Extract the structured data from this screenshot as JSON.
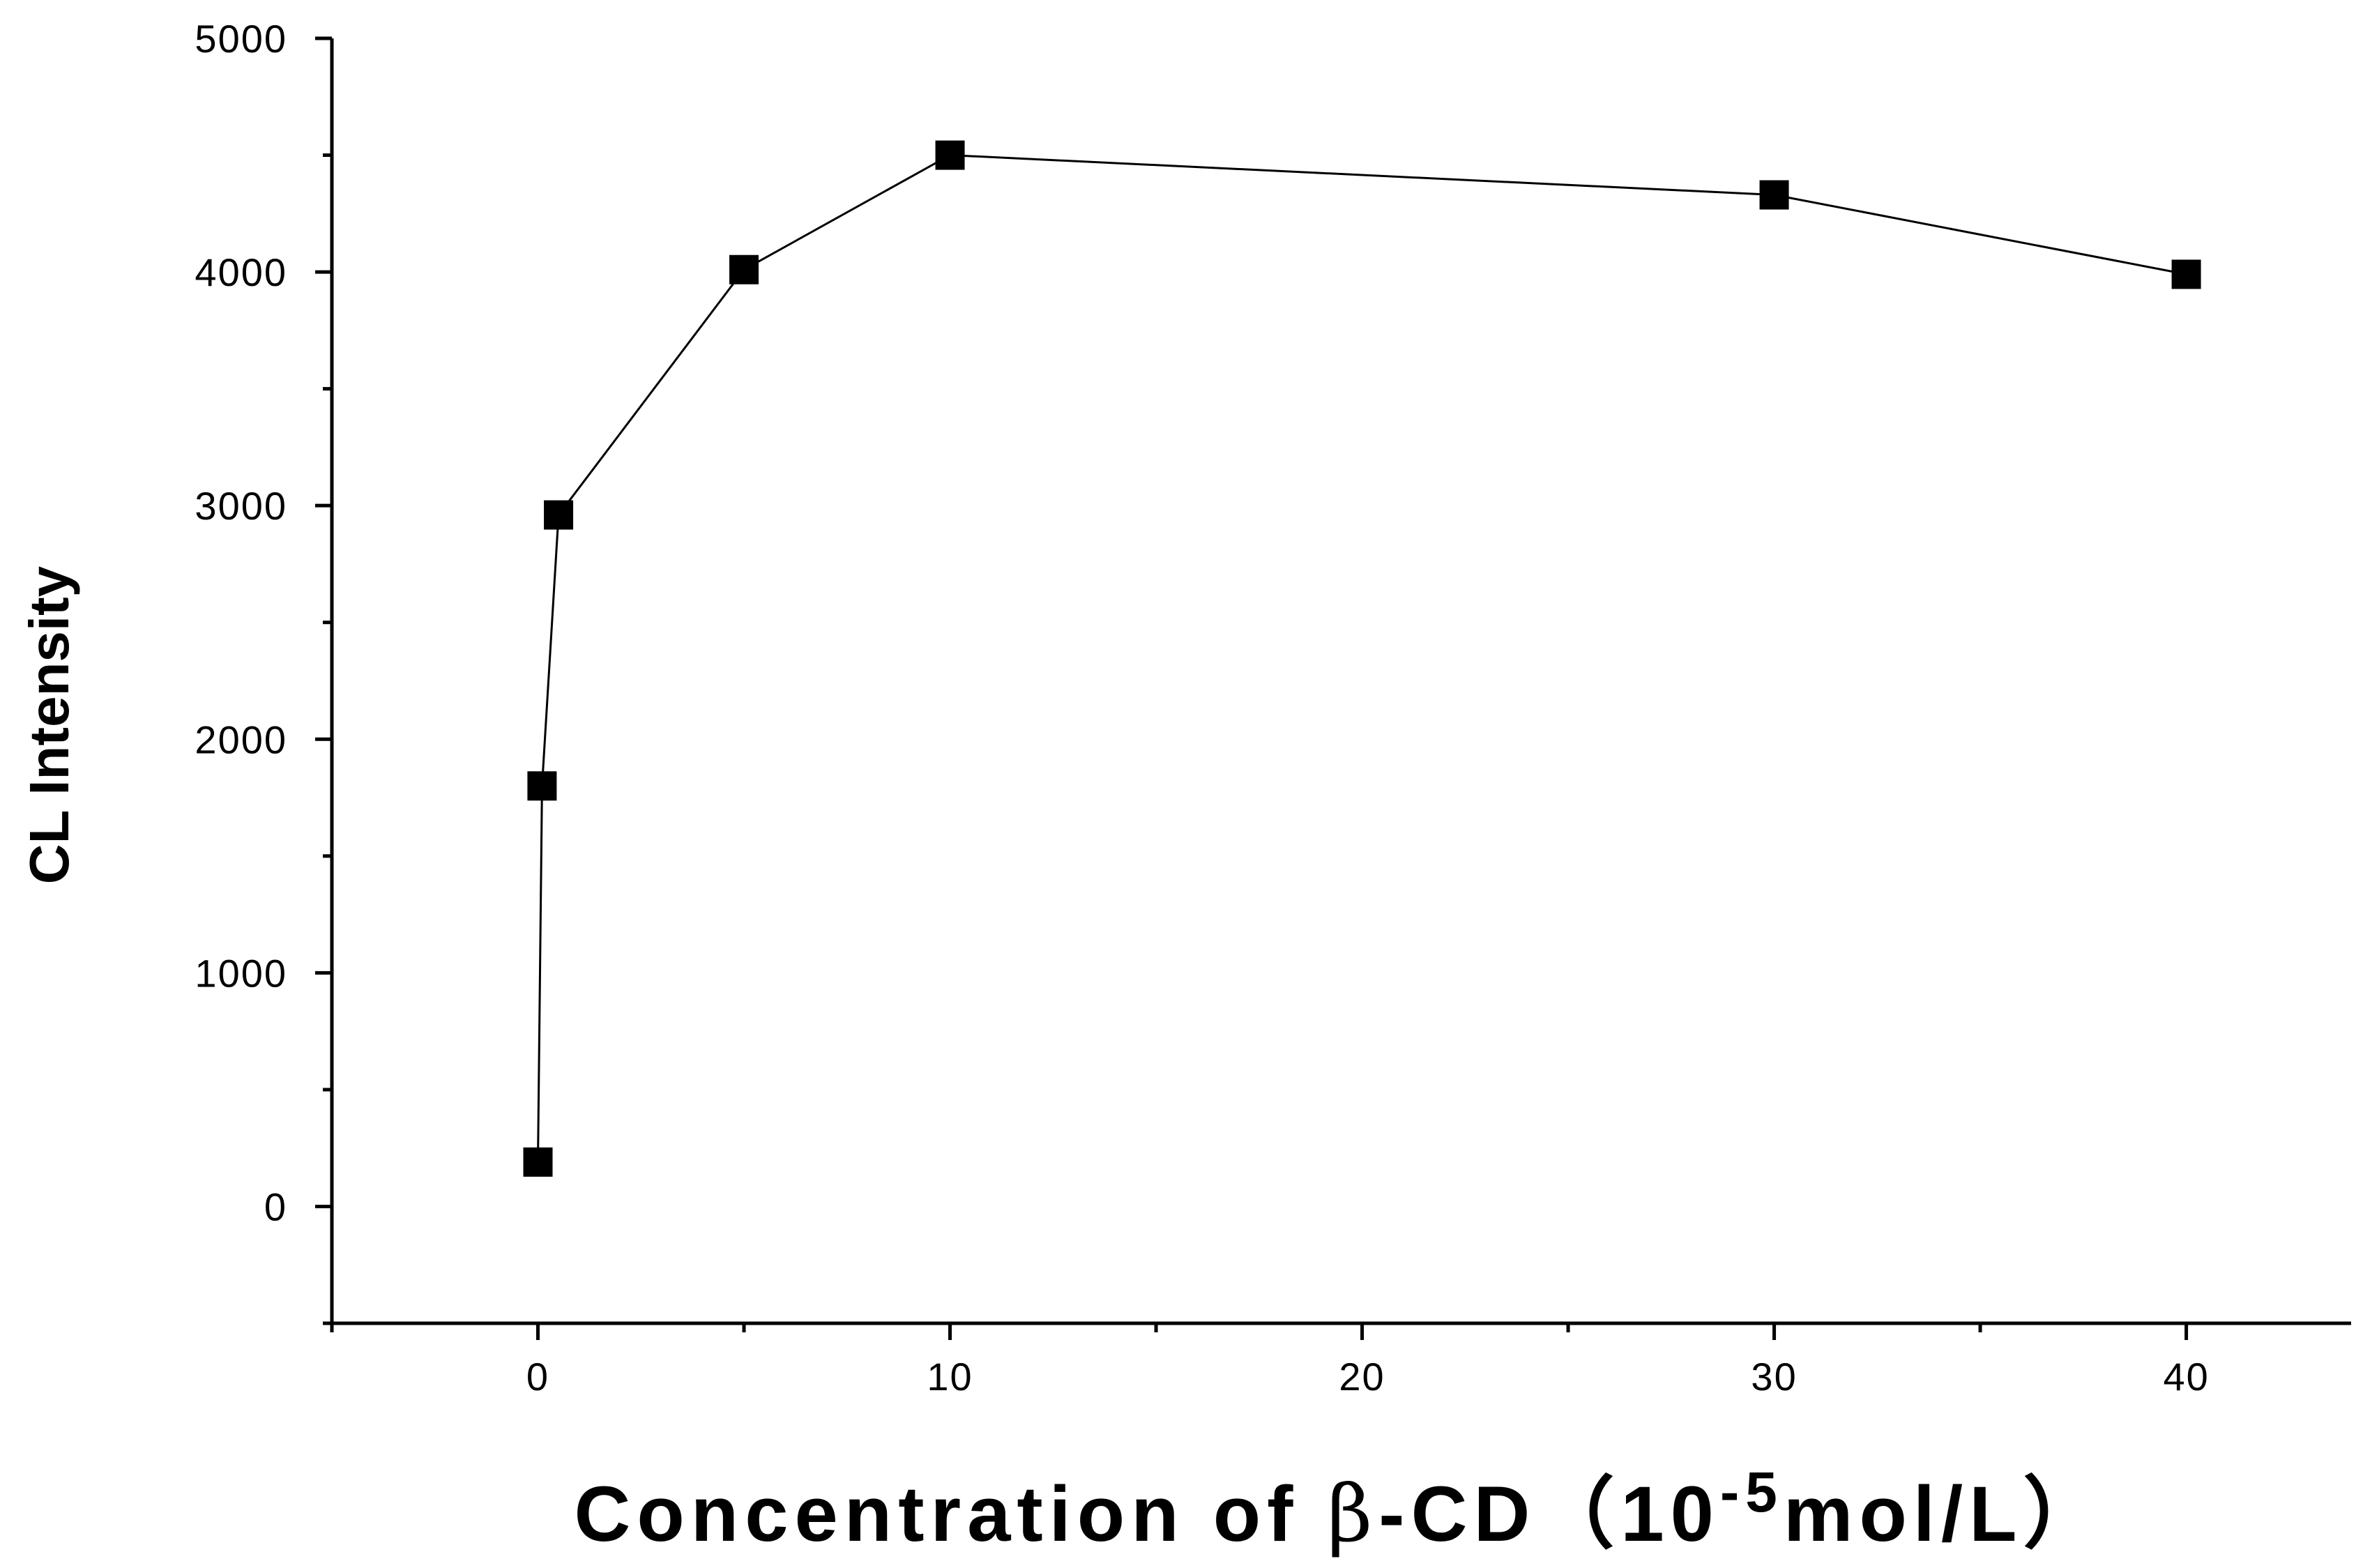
{
  "chart_data": {
    "type": "line",
    "title": "",
    "xlabel": {
      "prefix": "Concentration of ",
      "symbol": "β",
      "middle": "-CD（10",
      "superscript": "-5",
      "suffix": "mol/L）"
    },
    "ylabel": "CL Intensity",
    "xlim": [
      -5,
      44
    ],
    "ylim": [
      -500,
      5000
    ],
    "x_ticks": [
      0,
      10,
      20,
      30,
      40
    ],
    "x_minor_ticks": [
      -5,
      5,
      15,
      25,
      35
    ],
    "y_ticks": [
      0,
      1000,
      2000,
      3000,
      4000,
      5000
    ],
    "y_minor_ticks": [
      -500,
      500,
      1500,
      2500,
      3500,
      4500
    ],
    "series": [
      {
        "marker": "square",
        "color": "#000000",
        "x": [
          0,
          0.1,
          0.5,
          5,
          10,
          30,
          40
        ],
        "y": [
          190,
          1800,
          2960,
          4010,
          4500,
          4330,
          3990
        ]
      }
    ],
    "grid": false,
    "legend": false
  }
}
